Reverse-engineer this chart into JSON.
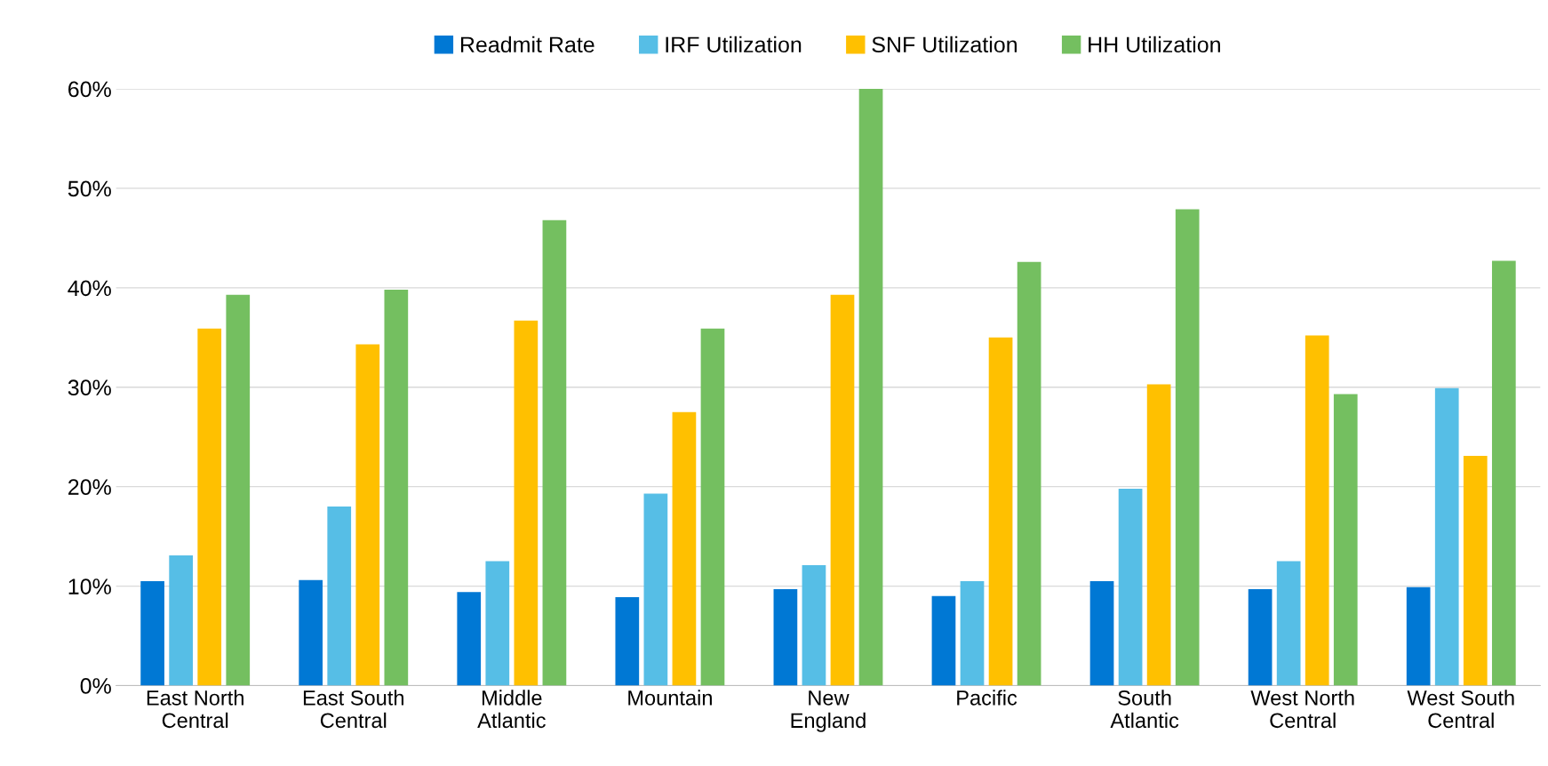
{
  "chart_data": {
    "type": "bar",
    "categories": [
      "East North\nCentral",
      "East South\nCentral",
      "Middle\nAtlantic",
      "Mountain",
      "New\nEngland",
      "Pacific",
      "South\nAtlantic",
      "West North\nCentral",
      "West South\nCentral"
    ],
    "series": [
      {
        "name": "Readmit Rate",
        "color": "#0078d4",
        "values": [
          10.5,
          10.6,
          9.4,
          8.9,
          9.7,
          9.0,
          10.5,
          9.7,
          9.9
        ]
      },
      {
        "name": "IRF Utilization",
        "color": "#56bee6",
        "values": [
          13.1,
          18.0,
          12.5,
          19.3,
          12.1,
          10.5,
          19.8,
          12.5,
          29.9
        ]
      },
      {
        "name": "SNF Utilization",
        "color": "#ffc000",
        "values": [
          35.9,
          34.3,
          36.7,
          27.5,
          39.3,
          35.0,
          30.3,
          35.2,
          23.1
        ]
      },
      {
        "name": "HH Utilization",
        "color": "#74bf60",
        "values": [
          39.3,
          39.8,
          46.8,
          35.9,
          60.0,
          42.6,
          47.9,
          29.3,
          42.7
        ]
      }
    ],
    "ylim": [
      0,
      60
    ],
    "yticks": [
      {
        "value": 0,
        "label": "0%"
      },
      {
        "value": 10,
        "label": "10%"
      },
      {
        "value": 20,
        "label": "20%"
      },
      {
        "value": 30,
        "label": "30%"
      },
      {
        "value": 40,
        "label": "40%"
      },
      {
        "value": 50,
        "label": "50%"
      },
      {
        "value": 60,
        "label": "60%"
      }
    ],
    "grid": "y",
    "legend": "top"
  }
}
